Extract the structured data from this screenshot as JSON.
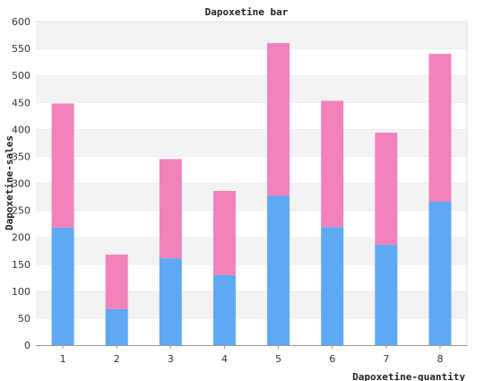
{
  "chart_data": {
    "type": "bar",
    "stacked": true,
    "title": "Dapoxetine bar",
    "xlabel": "Dapoxetine-quantity",
    "ylabel": "Dapoxetine-sales",
    "categories": [
      "1",
      "2",
      "3",
      "4",
      "5",
      "6",
      "7",
      "8"
    ],
    "ylim": [
      0,
      600
    ],
    "yticks": [
      0,
      50,
      100,
      150,
      200,
      250,
      300,
      350,
      400,
      450,
      500,
      550,
      600
    ],
    "grid": "horizontal bands",
    "series": [
      {
        "values": [
          218,
          67,
          161,
          130,
          277,
          219,
          186,
          266
        ],
        "color": "#5fa8f4"
      },
      {
        "values": [
          230,
          101,
          184,
          156,
          283,
          234,
          208,
          274
        ],
        "color": "#f282bb"
      }
    ],
    "band_colors": [
      "#f3f3f3",
      "#ffffff"
    ]
  }
}
